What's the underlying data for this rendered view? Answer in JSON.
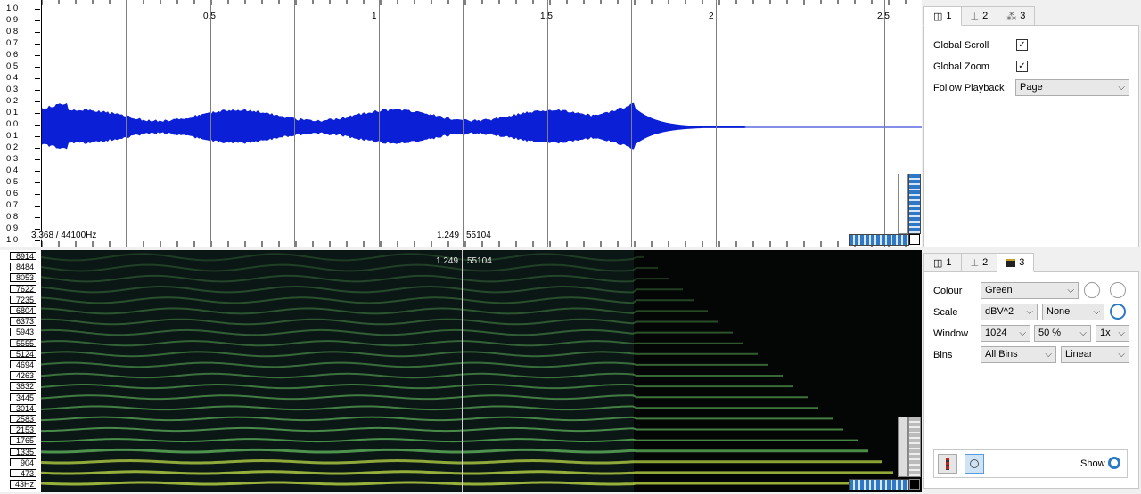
{
  "waveform": {
    "amp_labels": [
      "1.0",
      "0.9",
      "0.8",
      "0.7",
      "0.6",
      "0.5",
      "0.4",
      "0.3",
      "0.2",
      "0.1",
      "0.0",
      "0.1",
      "0.2",
      "0.3",
      "0.4",
      "0.5",
      "0.6",
      "0.7",
      "0.8",
      "0.9",
      "1.0"
    ],
    "time_labels": [
      "0.5",
      "1",
      "1.5",
      "2",
      "2.5"
    ],
    "info_left": "3.368 / 44100Hz",
    "cursor_readout": "1.249",
    "cursor_frame": "55104",
    "wave_color": "#0a1fd6"
  },
  "spectrogram": {
    "freq_labels": [
      "8914",
      "8484",
      "8053",
      "7622",
      "7235",
      "6804",
      "6373",
      "5943",
      "5555",
      "5124",
      "4694",
      "4263",
      "3832",
      "3445",
      "3014",
      "2583",
      "2153",
      "1765",
      "1335",
      "904",
      "473",
      "43Hz"
    ],
    "cursor_readout": "1.249",
    "cursor_frame": "55104"
  },
  "panel_top": {
    "tabs": [
      "1",
      "2",
      "3"
    ],
    "global_scroll_label": "Global Scroll",
    "global_scroll_checked": "✓",
    "global_zoom_label": "Global Zoom",
    "global_zoom_checked": "✓",
    "follow_playback_label": "Follow Playback",
    "follow_playback_value": "Page"
  },
  "panel_bottom": {
    "tabs": [
      "1",
      "2",
      "3"
    ],
    "colour_label": "Colour",
    "colour_value": "Green",
    "scale_label": "Scale",
    "scale_value": "dBV^2",
    "scale_norm_value": "None",
    "window_label": "Window",
    "window_size": "1024",
    "window_overlap": "50 %",
    "window_oversample": "1x",
    "bins_label": "Bins",
    "bins_value": "All Bins",
    "bins_scale": "Linear",
    "show_label": "Show"
  },
  "colors": {
    "accent": "#2a79c4",
    "spectrogram_line": "#6fd06a"
  }
}
